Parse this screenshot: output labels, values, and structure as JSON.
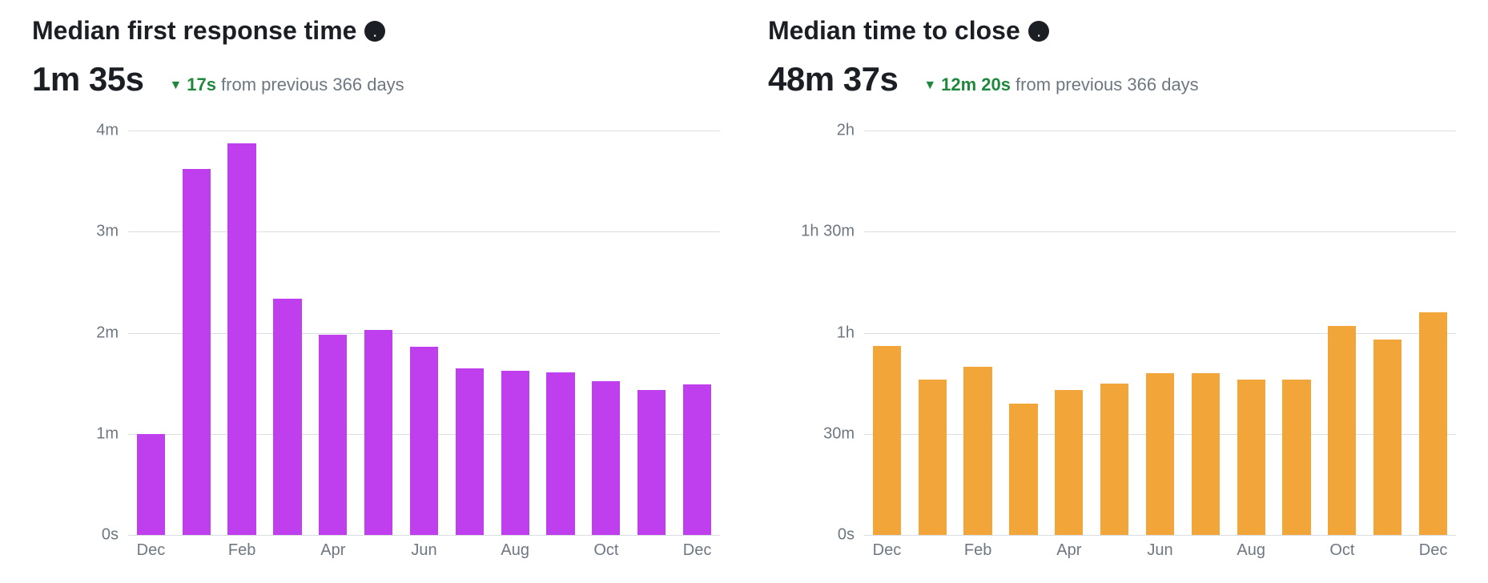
{
  "panels": [
    {
      "id": "first-response",
      "title": "Median first response time",
      "summary_value": "1m 35s",
      "delta_direction": "down",
      "delta_value": "17s",
      "delta_context": "from previous 366 days",
      "chart": {
        "type": "bar",
        "bar_color": "#bf3eed",
        "grid_color": "#d8dee4",
        "background_color": "#ffffff",
        "tick_font_color": "#6e7781",
        "tick_font_size": 20,
        "bar_width_ratio": 0.62,
        "y_max": 4.0,
        "y_ticks": [
          {
            "value": 0.0,
            "label": "0s"
          },
          {
            "value": 1.0,
            "label": "1m"
          },
          {
            "value": 2.0,
            "label": "2m"
          },
          {
            "value": 3.0,
            "label": "3m"
          },
          {
            "value": 4.0,
            "label": "4m"
          }
        ],
        "categories": [
          "Dec",
          "Jan",
          "Feb",
          "Mar",
          "Apr",
          "May",
          "Jun",
          "Jul",
          "Aug",
          "Sep",
          "Oct",
          "Nov",
          "Dec"
        ],
        "values": [
          1.0,
          3.62,
          3.87,
          2.34,
          1.98,
          2.03,
          1.86,
          1.65,
          1.62,
          1.61,
          1.52,
          1.43,
          1.49
        ],
        "x_tick_labels": [
          {
            "index": 0,
            "label": "Dec"
          },
          {
            "index": 2,
            "label": "Feb"
          },
          {
            "index": 4,
            "label": "Apr"
          },
          {
            "index": 6,
            "label": "Jun"
          },
          {
            "index": 8,
            "label": "Aug"
          },
          {
            "index": 10,
            "label": "Oct"
          },
          {
            "index": 12,
            "label": "Dec"
          }
        ]
      }
    },
    {
      "id": "time-to-close",
      "title": "Median time to close",
      "summary_value": "48m 37s",
      "delta_direction": "down",
      "delta_value": "12m 20s",
      "delta_context": "from previous 366 days",
      "chart": {
        "type": "bar",
        "bar_color": "#f2a63a",
        "grid_color": "#d8dee4",
        "background_color": "#ffffff",
        "tick_font_color": "#6e7781",
        "tick_font_size": 20,
        "bar_width_ratio": 0.62,
        "y_max": 120,
        "y_ticks": [
          {
            "value": 0,
            "label": "0s"
          },
          {
            "value": 30,
            "label": "30m"
          },
          {
            "value": 60,
            "label": "1h"
          },
          {
            "value": 90,
            "label": "1h 30m"
          },
          {
            "value": 120,
            "label": "2h"
          }
        ],
        "categories": [
          "Dec",
          "Jan",
          "Feb",
          "Mar",
          "Apr",
          "May",
          "Jun",
          "Jul",
          "Aug",
          "Sep",
          "Oct",
          "Nov",
          "Dec"
        ],
        "values": [
          56,
          46,
          50,
          39,
          43,
          45,
          48,
          48,
          46,
          46,
          62,
          58,
          66
        ],
        "x_tick_labels": [
          {
            "index": 0,
            "label": "Dec"
          },
          {
            "index": 2,
            "label": "Feb"
          },
          {
            "index": 4,
            "label": "Apr"
          },
          {
            "index": 6,
            "label": "Jun"
          },
          {
            "index": 8,
            "label": "Aug"
          },
          {
            "index": 10,
            "label": "Oct"
          },
          {
            "index": 12,
            "label": "Dec"
          }
        ]
      }
    }
  ],
  "colors": {
    "text_primary": "#1b1f24",
    "text_secondary": "#6e7781",
    "success": "#1f883d"
  }
}
